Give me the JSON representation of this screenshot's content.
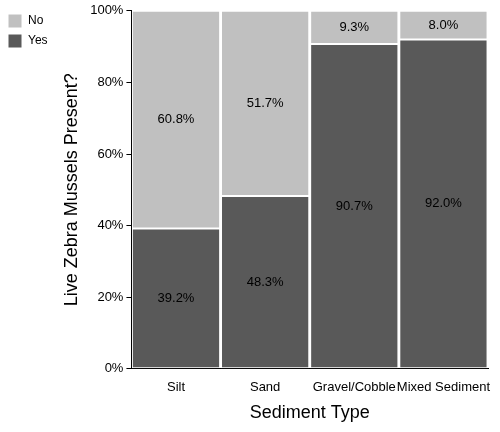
{
  "chart_data": {
    "type": "bar",
    "stacked": true,
    "x_label": "Sediment Type",
    "y_label": "Live Zebra Mussels Present?",
    "categories": [
      "Silt",
      "Sand",
      "Gravel/Cobble",
      "Mixed Sediment"
    ],
    "series": [
      {
        "name": "Yes",
        "color": "#595959",
        "values": [
          39.2,
          48.3,
          90.7,
          92.0
        ],
        "value_labels": [
          "39.2%",
          "48.3%",
          "90.7%",
          "92.0%"
        ]
      },
      {
        "name": "No",
        "color": "#c0c0c0",
        "values": [
          60.8,
          51.7,
          9.3,
          8.0
        ],
        "value_labels": [
          "60.8%",
          "51.7%",
          "9.3%",
          "8.0%"
        ]
      }
    ],
    "ylim": [
      0,
      100
    ],
    "yticks": [
      {
        "value": 0,
        "label": "0%"
      },
      {
        "value": 20,
        "label": "20%"
      },
      {
        "value": 40,
        "label": "40%"
      },
      {
        "value": 60,
        "label": "60%"
      },
      {
        "value": 80,
        "label": "80%"
      },
      {
        "value": 100,
        "label": "100%"
      }
    ],
    "grid": false,
    "legend": "left",
    "data_labels": true
  }
}
